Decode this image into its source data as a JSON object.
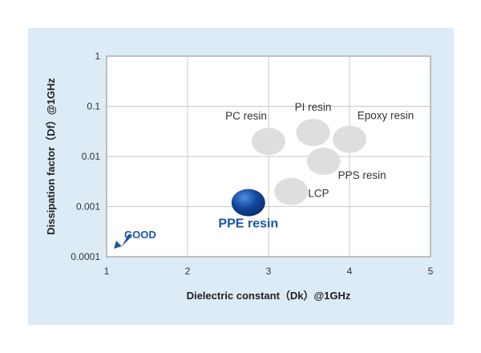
{
  "chart_data": {
    "type": "scatter",
    "title": "",
    "xlabel": "Dielectric constant（Dk）@1GHz",
    "ylabel": "Dissipation factor（Df）@1GHz",
    "xlim": [
      1,
      5
    ],
    "ylim": [
      0.0001,
      1
    ],
    "yscale": "log",
    "grid": true,
    "x_ticks": [
      "1",
      "2",
      "3",
      "4",
      "5"
    ],
    "y_ticks": [
      "1",
      "0.1",
      "0.01",
      "0.001",
      "0.0001"
    ],
    "points": [
      {
        "name": "PC resin",
        "x": 3.0,
        "y": 0.02,
        "highlight": false
      },
      {
        "name": "PI resin",
        "x": 3.55,
        "y": 0.03,
        "highlight": false
      },
      {
        "name": "Epoxy resin",
        "x": 4.0,
        "y": 0.022,
        "highlight": false
      },
      {
        "name": "PPS resin",
        "x": 3.68,
        "y": 0.008,
        "highlight": false
      },
      {
        "name": "LCP",
        "x": 3.28,
        "y": 0.002,
        "highlight": false
      },
      {
        "name": "PPE resin",
        "x": 2.75,
        "y": 0.0012,
        "highlight": true
      }
    ],
    "annotations": [
      "GOOD"
    ],
    "colors": {
      "point": "#dedede",
      "highlight": "#0d3f8e",
      "accent": "#1a56a8"
    }
  }
}
